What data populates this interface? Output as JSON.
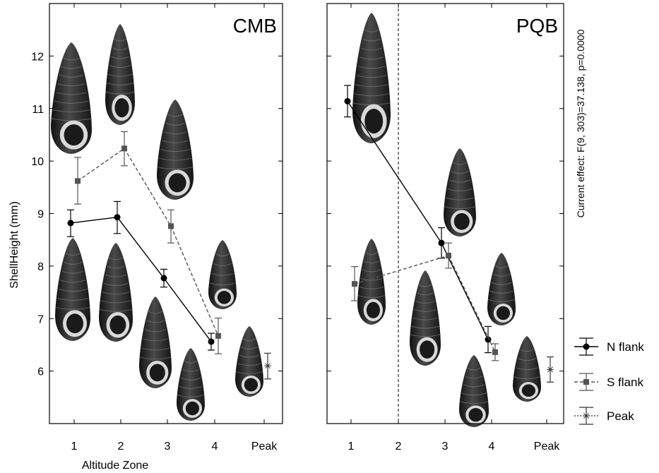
{
  "chart_data": {
    "type": "line",
    "xlabel": "Altitude Zone",
    "ylabel": "ShellHeight (mm)",
    "effect_text": "Current effect: F(9, 303)=37.138, p=0.0000",
    "categories": [
      "1",
      "2",
      "3",
      "4",
      "Peak"
    ],
    "ylim": [
      5.0,
      13.0
    ],
    "yticks": [
      6,
      7,
      8,
      9,
      10,
      11,
      12
    ],
    "grid": false,
    "legend_position": "right",
    "colors": {
      "n_flank": "#000000",
      "s_flank": "#555555",
      "peak": "#333333",
      "shell": "#2a2a2a"
    },
    "legend": [
      {
        "label": "N flank",
        "marker": "circle",
        "line": "solid"
      },
      {
        "label": "S flank",
        "marker": "square",
        "line": "dashed"
      },
      {
        "label": "Peak",
        "marker": "asterisk",
        "line": "dotted"
      }
    ],
    "panels": [
      {
        "title": "CMB",
        "series": [
          {
            "name": "N flank",
            "x": [
              "1",
              "2",
              "3",
              "4"
            ],
            "values": [
              8.82,
              8.93,
              7.77,
              6.56
            ],
            "err_low": [
              8.56,
              8.62,
              7.6,
              6.4
            ],
            "err_high": [
              9.07,
              9.23,
              7.94,
              6.72
            ]
          },
          {
            "name": "S flank",
            "x": [
              "1",
              "2",
              "3",
              "4"
            ],
            "values": [
              9.62,
              10.24,
              8.76,
              6.67
            ],
            "err_low": [
              9.18,
              9.91,
              8.44,
              6.33
            ],
            "err_high": [
              10.07,
              10.56,
              9.07,
              7.01
            ]
          },
          {
            "name": "Peak",
            "x": [
              "Peak"
            ],
            "values": [
              6.1
            ],
            "err_low": [
              5.85
            ],
            "err_high": [
              6.34
            ]
          }
        ]
      },
      {
        "title": "PQB",
        "divider_at": "2",
        "series": [
          {
            "name": "N flank",
            "x": [
              "1",
              "3",
              "4"
            ],
            "values": [
              11.14,
              8.44,
              6.6
            ],
            "err_low": [
              10.84,
              8.15,
              6.35
            ],
            "err_high": [
              11.44,
              8.73,
              6.85
            ],
            "connect": [
              false,
              true,
              true
            ]
          },
          {
            "name": "S flank",
            "x": [
              "1",
              "3",
              "4"
            ],
            "values": [
              7.66,
              8.2,
              6.36
            ],
            "err_low": [
              7.34,
              7.96,
              6.2
            ],
            "err_high": [
              7.99,
              8.44,
              6.52
            ],
            "connect": [
              false,
              true,
              true
            ]
          },
          {
            "name": "Peak",
            "x": [
              "Peak"
            ],
            "values": [
              6.03
            ],
            "err_low": [
              5.79
            ],
            "err_high": [
              6.27
            ]
          }
        ]
      }
    ]
  }
}
